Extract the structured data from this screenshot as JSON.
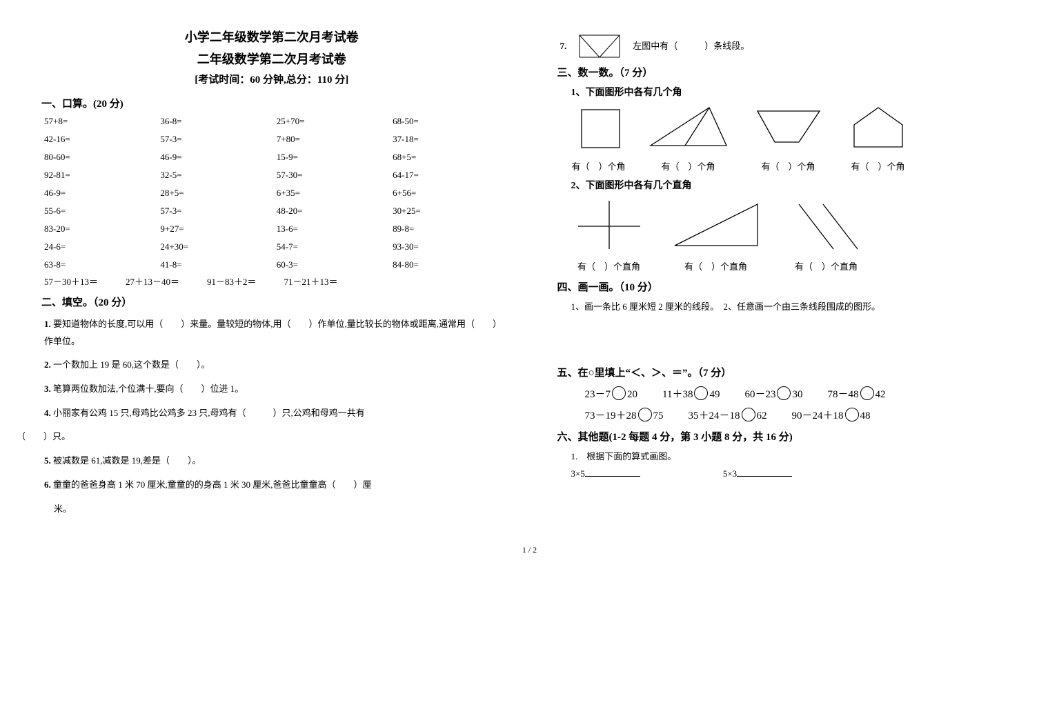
{
  "titles": {
    "main": "小学二年级数学第二次月考试卷",
    "sub": "二年级数学第二次月考试卷",
    "info": "[考试时间：60 分钟,总分：110 分]"
  },
  "section1": {
    "head": "一、口算。(20 分)",
    "grid": [
      [
        "57+8=",
        "36-8=",
        "25+70=",
        "68-50="
      ],
      [
        "42-16=",
        "57-3=",
        "7+80=",
        "37-18="
      ],
      [
        "80-60=",
        "46-9=",
        "15-9=",
        "68+5="
      ],
      [
        "92-81=",
        "32-5=",
        "57-30=",
        "64-17="
      ],
      [
        "46-9=",
        "28+5=",
        "6+35=",
        "6+56="
      ],
      [
        "55-6=",
        "57-3=",
        "48-20=",
        "30+25="
      ],
      [
        "83-20=",
        "9+27=",
        "13-6=",
        "89-8="
      ],
      [
        "24-6=",
        "24+30=",
        "54-7=",
        "93-30="
      ],
      [
        "63-8=",
        "41-8=",
        "60-3=",
        "84-80="
      ]
    ],
    "last_row": [
      "57－30＋13＝",
      "27＋13－40＝",
      "91－83＋2＝",
      "71－21＋13＝"
    ]
  },
  "section2": {
    "head": "二、填空。（20 分）",
    "items": {
      "q1": "要知道物体的长度,可以用（　　）来量。量较短的物体,用（　　）作单位,量比较长的物体或距离,通常用（　　）作单位。",
      "q2": "一个数加上 19 是 60,这个数是（　　）。",
      "q3": "笔算两位数加法,个位满十,要向（　　）位进 1。",
      "q4_a": "小丽家有公鸡 15 只,母鸡比公鸡多 23 只,母鸡有（　　　）只,公鸡和母鸡一共有",
      "q4_b": "（　　）只。",
      "q5": "被减数是 61,减数是 19,差是（　　）。",
      "q6": "童童的爸爸身高 1 米 70 厘米,童童的的身高 1 米 30 厘米,爸爸比童童高（　　）厘",
      "q6_b": "米。"
    },
    "nums": {
      "n1": "1.",
      "n2": "2.",
      "n3": "3.",
      "n4": "4.",
      "n5": "5.",
      "n6": "6."
    }
  },
  "section_q7": {
    "num": "7.",
    "text": "左图中有（　　　）条线段。"
  },
  "section3": {
    "head": "三、数一数。（7 分）",
    "sub1": "1、下面图形中各有几个角",
    "labels_angle": [
      "有（　）个角",
      "有（　）个角",
      "有（　）个角",
      "有（　）个角"
    ],
    "sub2": "2、下面图形中各有几个直角",
    "labels_right": [
      "有（　）个直角",
      "有（　）个直角",
      "有（　）个直角"
    ]
  },
  "section4": {
    "head": "四、画一画。（10 分）",
    "text": "1、画一条比 6 厘米短 2 厘米的线段。　2、任意画一个由三条线段围成的图形。"
  },
  "section5": {
    "head": "五、在○里填上“＜、＞、＝”。（7 分）",
    "row1": [
      {
        "l": "23－7",
        "r": "20"
      },
      {
        "l": "11＋38",
        "r": "49"
      },
      {
        "l": "60－23",
        "r": "30"
      },
      {
        "l": "78－48",
        "r": "42"
      }
    ],
    "row2": [
      {
        "l": "73－19＋28",
        "r": "75"
      },
      {
        "l": "35＋24－18",
        "r": "62"
      },
      {
        "l": "90－24＋18",
        "r": "48"
      }
    ]
  },
  "section6": {
    "head": "六、其他题(1-2 每题 4 分，第 3 小题 8 分，共 16 分)",
    "q1": "1.　根据下面的算式画图。",
    "expr1": "3×5",
    "expr2": "5×3"
  },
  "footer": "1 / 2"
}
